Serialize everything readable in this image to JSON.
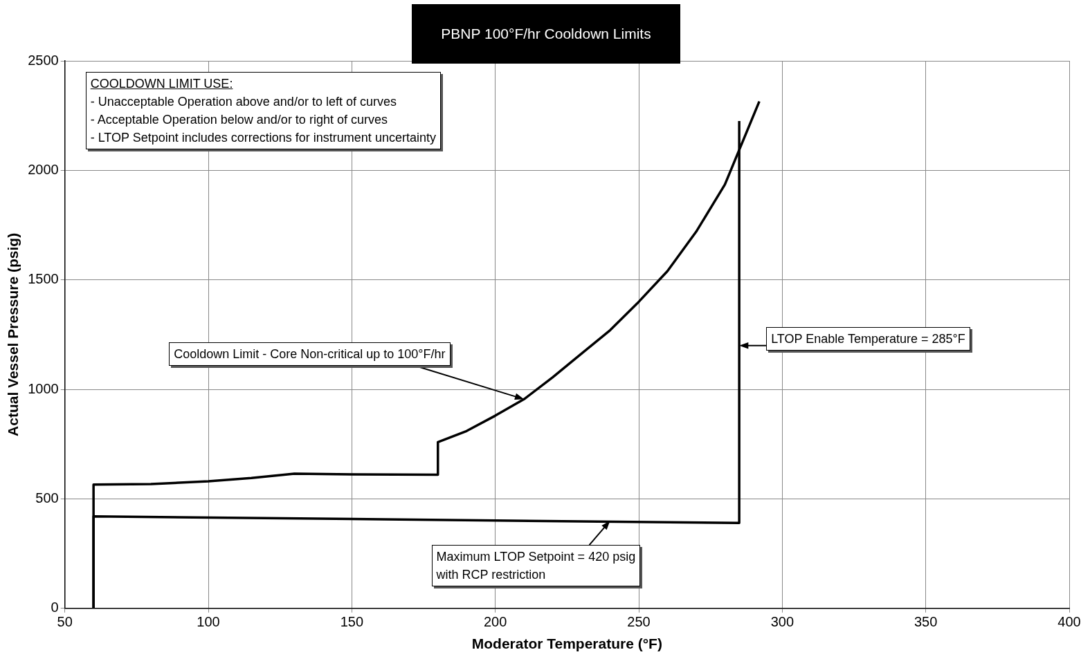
{
  "chart_data": {
    "type": "line",
    "title": "PBNP 100°F/hr Cooldown Limits",
    "xlabel": "Moderator Temperature (°F)",
    "ylabel": "Actual Vessel Pressure (psig)",
    "xlim": [
      50,
      400
    ],
    "xticks": [
      50,
      100,
      150,
      200,
      250,
      300,
      350,
      400
    ],
    "ylim": [
      0,
      2500
    ],
    "yticks": [
      0,
      500,
      1000,
      1500,
      2000,
      2500
    ],
    "grid": true,
    "legend": false,
    "marker": "none",
    "line_style": "solid",
    "series": [
      {
        "color": "#000000",
        "x": [
          60,
          60,
          80,
          100,
          115,
          130,
          150,
          180,
          180,
          190,
          200,
          210,
          220,
          226,
          240,
          250,
          260,
          270,
          280,
          292
        ],
        "values": [
          0,
          565,
          568,
          580,
          595,
          615,
          612,
          610,
          759,
          810,
          880,
          955,
          1055,
          1120,
          1270,
          1400,
          1540,
          1720,
          1935,
          2315
        ]
      },
      {
        "color": "#000000",
        "x": [
          60,
          60,
          285,
          285
        ],
        "values": [
          0,
          420,
          390,
          2225
        ]
      }
    ],
    "annotations": [
      "COOLDOWN LIMIT USE:\n- Unacceptable Operation above and/or to left of curves\n- Acceptable Operation below and/or to right of curves\n- LTOP Setpoint includes corrections for instrument uncertainty",
      {
        "text": "Cooldown Limit - Core Non-critical up to 100°F/hr",
        "x": 210,
        "y": 955
      },
      {
        "text": "LTOP Enable Temperature = 285°F",
        "x": 285,
        "y": 1200
      },
      {
        "text": "Maximum LTOP Setpoint = 420 psig\nwith RCP restriction",
        "x": 240,
        "y": 400
      }
    ]
  }
}
